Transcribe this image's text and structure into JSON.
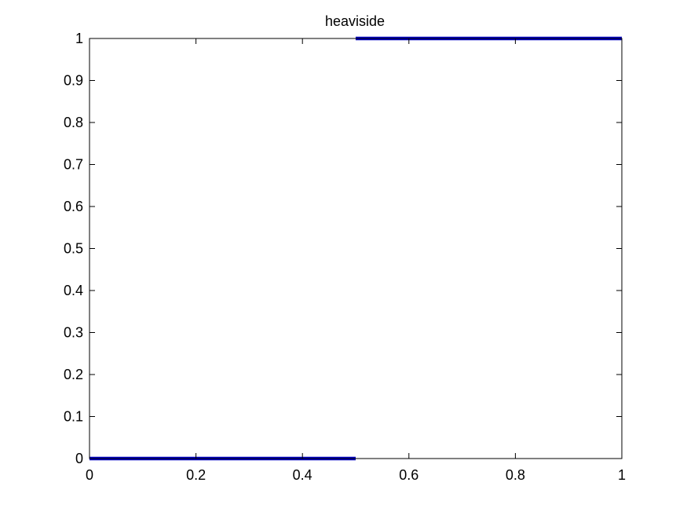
{
  "chart_data": {
    "type": "line",
    "title": "heaviside",
    "xlabel": "",
    "ylabel": "",
    "xlim": [
      0,
      1
    ],
    "ylim": [
      0,
      1
    ],
    "x_ticks": [
      "0",
      "0.2",
      "0.4",
      "0.6",
      "0.8",
      "1"
    ],
    "y_ticks": [
      "0",
      "0.1",
      "0.2",
      "0.3",
      "0.4",
      "0.5",
      "0.6",
      "0.7",
      "0.8",
      "0.9",
      "1"
    ],
    "grid": false,
    "series": [
      {
        "color": "#0000bf",
        "segments": [
          {
            "x": [
              0,
              0.5
            ],
            "y": [
              0,
              0
            ]
          },
          {
            "x": [
              0.5,
              1
            ],
            "y": [
              1,
              1
            ]
          }
        ]
      }
    ]
  }
}
